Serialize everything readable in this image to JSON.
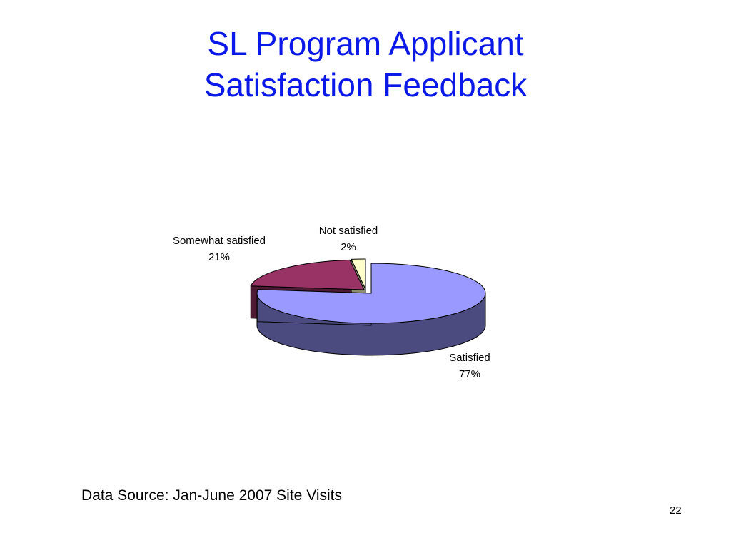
{
  "slide": {
    "title_line1": "SL Program Applicant",
    "title_line2": "Satisfaction Feedback",
    "source": "Data Source: Jan-June 2007 Site Visits",
    "page_number": "22"
  },
  "chart_data": {
    "type": "pie",
    "style": "3d-exploded",
    "categories": [
      "Satisfied",
      "Somewhat satisfied",
      "Not satisfied"
    ],
    "values": [
      77,
      21,
      2
    ],
    "labels": [
      {
        "name": "Satisfied",
        "value_text": "77%"
      },
      {
        "name": "Somewhat satisfied",
        "value_text": "21%"
      },
      {
        "name": "Not satisfied",
        "value_text": "2%"
      }
    ],
    "colors": {
      "Satisfied": {
        "top": "#9999ff",
        "side": "#4b4b80"
      },
      "Somewhat satisfied": {
        "top": "#993366",
        "side": "#4d1a33"
      },
      "Not satisfied": {
        "top": "#ffffcc",
        "side": "#808066"
      }
    },
    "divider_color": "#8c8c6e"
  }
}
